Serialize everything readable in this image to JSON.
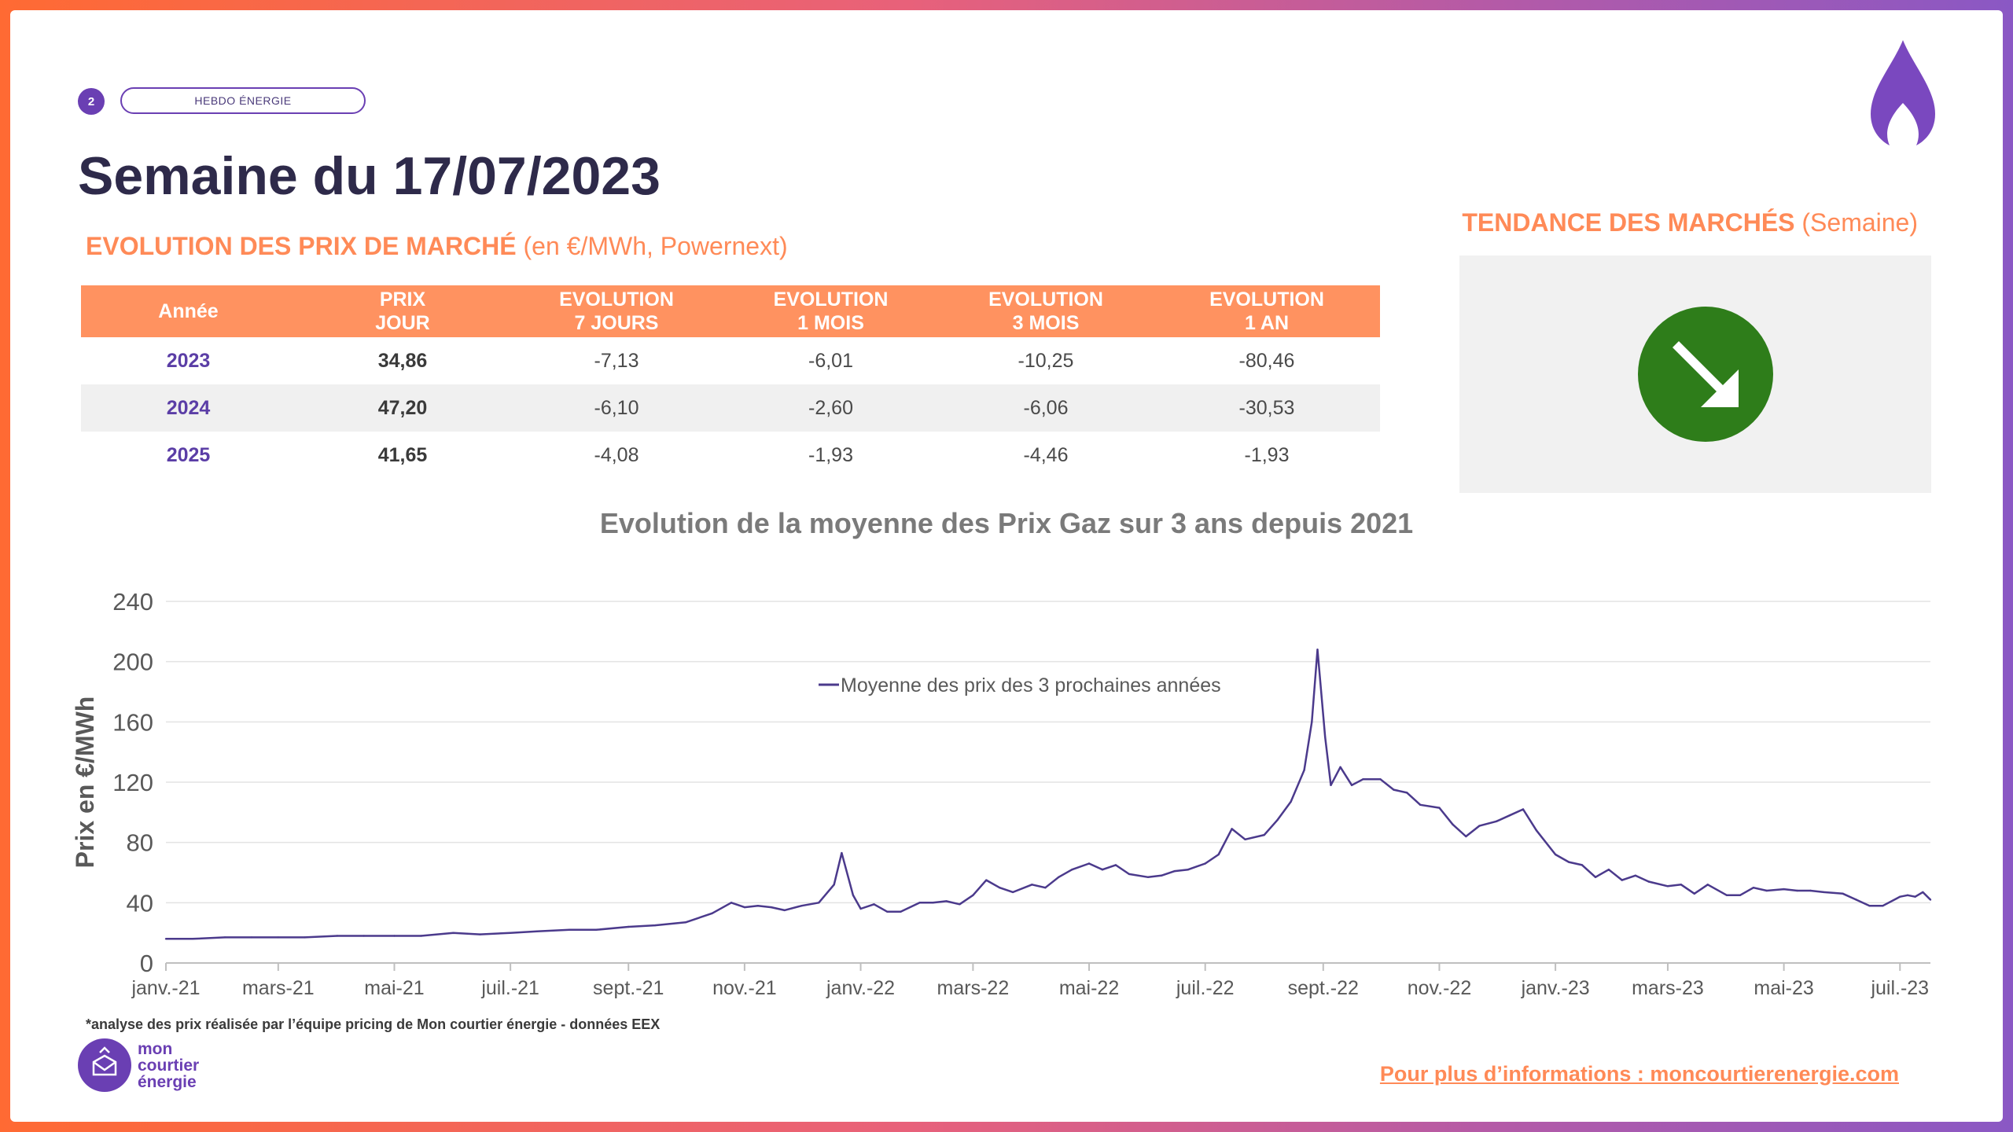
{
  "header": {
    "page_number": "2",
    "badge": "HEBDO ÉNERGIE",
    "title": "Semaine du 17/07/2023"
  },
  "section": {
    "title_bold": "EVOLUTION DES PRIX DE MARCHÉ",
    "title_light": "(en €/MWh, Powernext)"
  },
  "trend": {
    "title_bold": "TENDANCE DES MARCHÉS",
    "title_light": "(Semaine)",
    "direction_icon": "arrow-down-right-icon",
    "color": "#2e7d1a"
  },
  "table": {
    "headers": [
      [
        "Année"
      ],
      [
        "PRIX",
        "JOUR"
      ],
      [
        "EVOLUTION",
        "7 JOURS"
      ],
      [
        "EVOLUTION",
        "1 MOIS"
      ],
      [
        "EVOLUTION",
        "3 MOIS"
      ],
      [
        "EVOLUTION",
        "1 AN"
      ]
    ],
    "rows": [
      [
        "2023",
        "34,86",
        "-7,13",
        "-6,01",
        "-10,25",
        "-80,46"
      ],
      [
        "2024",
        "47,20",
        "-6,10",
        "-2,60",
        "-6,06",
        "-30,53"
      ],
      [
        "2025",
        "41,65",
        "-4,08",
        "-1,93",
        "-4,46",
        "-1,93"
      ]
    ]
  },
  "chart_data": {
    "type": "line",
    "title": "Evolution de la moyenne des Prix Gaz sur 3 ans depuis 2021",
    "xlabel": "",
    "ylabel": "Prix en €/MWh",
    "ylim": [
      0,
      240
    ],
    "yticks": [
      "0",
      "40",
      "80",
      "120",
      "160",
      "200",
      "240"
    ],
    "xlim": [
      "2021-01-01",
      "2023-07-17"
    ],
    "xticks": [
      {
        "date": "2021-01-01",
        "label": "janv.-21"
      },
      {
        "date": "2021-03-01",
        "label": "mars-21"
      },
      {
        "date": "2021-05-01",
        "label": "mai-21"
      },
      {
        "date": "2021-07-01",
        "label": "juil.-21"
      },
      {
        "date": "2021-09-01",
        "label": "sept.-21"
      },
      {
        "date": "2021-11-01",
        "label": "nov.-21"
      },
      {
        "date": "2022-01-01",
        "label": "janv.-22"
      },
      {
        "date": "2022-03-01",
        "label": "mars-22"
      },
      {
        "date": "2022-05-01",
        "label": "mai-22"
      },
      {
        "date": "2022-07-01",
        "label": "juil.-22"
      },
      {
        "date": "2022-09-01",
        "label": "sept.-22"
      },
      {
        "date": "2022-11-01",
        "label": "nov.-22"
      },
      {
        "date": "2023-01-01",
        "label": "janv.-23"
      },
      {
        "date": "2023-03-01",
        "label": "mars-23"
      },
      {
        "date": "2023-05-01",
        "label": "mai-23"
      },
      {
        "date": "2023-07-01",
        "label": "juil.-23"
      }
    ],
    "grid": true,
    "legend_position": "top-center",
    "series": [
      {
        "name": "Moyenne des prix des 3 prochaines années",
        "color": "#4b3a8c",
        "points": [
          [
            "2021-01-01",
            16
          ],
          [
            "2021-01-15",
            16
          ],
          [
            "2021-02-01",
            17
          ],
          [
            "2021-02-15",
            17
          ],
          [
            "2021-03-01",
            17
          ],
          [
            "2021-03-15",
            17
          ],
          [
            "2021-04-01",
            18
          ],
          [
            "2021-04-15",
            18
          ],
          [
            "2021-05-01",
            18
          ],
          [
            "2021-05-15",
            18
          ],
          [
            "2021-06-01",
            20
          ],
          [
            "2021-06-15",
            19
          ],
          [
            "2021-07-01",
            20
          ],
          [
            "2021-07-15",
            21
          ],
          [
            "2021-08-01",
            22
          ],
          [
            "2021-08-15",
            22
          ],
          [
            "2021-09-01",
            24
          ],
          [
            "2021-09-15",
            25
          ],
          [
            "2021-10-01",
            27
          ],
          [
            "2021-10-15",
            33
          ],
          [
            "2021-10-25",
            40
          ],
          [
            "2021-11-01",
            37
          ],
          [
            "2021-11-08",
            38
          ],
          [
            "2021-11-15",
            37
          ],
          [
            "2021-11-22",
            35
          ],
          [
            "2021-12-01",
            38
          ],
          [
            "2021-12-10",
            40
          ],
          [
            "2021-12-18",
            52
          ],
          [
            "2021-12-22",
            73
          ],
          [
            "2021-12-28",
            45
          ],
          [
            "2022-01-01",
            36
          ],
          [
            "2022-01-08",
            39
          ],
          [
            "2022-01-15",
            34
          ],
          [
            "2022-01-22",
            34
          ],
          [
            "2022-02-01",
            40
          ],
          [
            "2022-02-08",
            40
          ],
          [
            "2022-02-15",
            41
          ],
          [
            "2022-02-22",
            39
          ],
          [
            "2022-03-01",
            45
          ],
          [
            "2022-03-08",
            55
          ],
          [
            "2022-03-15",
            50
          ],
          [
            "2022-03-22",
            47
          ],
          [
            "2022-04-01",
            52
          ],
          [
            "2022-04-08",
            50
          ],
          [
            "2022-04-15",
            57
          ],
          [
            "2022-04-22",
            62
          ],
          [
            "2022-05-01",
            66
          ],
          [
            "2022-05-08",
            62
          ],
          [
            "2022-05-15",
            65
          ],
          [
            "2022-05-22",
            59
          ],
          [
            "2022-06-01",
            57
          ],
          [
            "2022-06-08",
            58
          ],
          [
            "2022-06-15",
            61
          ],
          [
            "2022-06-22",
            62
          ],
          [
            "2022-07-01",
            66
          ],
          [
            "2022-07-08",
            72
          ],
          [
            "2022-07-15",
            89
          ],
          [
            "2022-07-22",
            82
          ],
          [
            "2022-08-01",
            85
          ],
          [
            "2022-08-08",
            95
          ],
          [
            "2022-08-15",
            107
          ],
          [
            "2022-08-22",
            128
          ],
          [
            "2022-08-26",
            160
          ],
          [
            "2022-08-29",
            208
          ],
          [
            "2022-09-02",
            150
          ],
          [
            "2022-09-05",
            118
          ],
          [
            "2022-09-10",
            130
          ],
          [
            "2022-09-16",
            118
          ],
          [
            "2022-09-22",
            122
          ],
          [
            "2022-10-01",
            122
          ],
          [
            "2022-10-08",
            115
          ],
          [
            "2022-10-15",
            113
          ],
          [
            "2022-10-22",
            105
          ],
          [
            "2022-11-01",
            103
          ],
          [
            "2022-11-08",
            92
          ],
          [
            "2022-11-15",
            84
          ],
          [
            "2022-11-22",
            91
          ],
          [
            "2022-12-01",
            94
          ],
          [
            "2022-12-08",
            98
          ],
          [
            "2022-12-15",
            102
          ],
          [
            "2022-12-22",
            88
          ],
          [
            "2023-01-01",
            72
          ],
          [
            "2023-01-08",
            67
          ],
          [
            "2023-01-15",
            65
          ],
          [
            "2023-01-22",
            57
          ],
          [
            "2023-01-29",
            62
          ],
          [
            "2023-02-05",
            55
          ],
          [
            "2023-02-12",
            58
          ],
          [
            "2023-02-19",
            54
          ],
          [
            "2023-03-01",
            51
          ],
          [
            "2023-03-08",
            52
          ],
          [
            "2023-03-15",
            46
          ],
          [
            "2023-03-22",
            52
          ],
          [
            "2023-04-01",
            45
          ],
          [
            "2023-04-08",
            45
          ],
          [
            "2023-04-15",
            50
          ],
          [
            "2023-04-22",
            48
          ],
          [
            "2023-05-01",
            49
          ],
          [
            "2023-05-08",
            48
          ],
          [
            "2023-05-15",
            48
          ],
          [
            "2023-05-22",
            47
          ],
          [
            "2023-06-01",
            46
          ],
          [
            "2023-06-08",
            42
          ],
          [
            "2023-06-15",
            38
          ],
          [
            "2023-06-22",
            38
          ],
          [
            "2023-07-01",
            44
          ],
          [
            "2023-07-05",
            45
          ],
          [
            "2023-07-09",
            44
          ],
          [
            "2023-07-13",
            47
          ],
          [
            "2023-07-17",
            42
          ]
        ]
      }
    ]
  },
  "footer": {
    "footnote": "*analyse des prix réalisée par l’équipe pricing de Mon courtier énergie -  données EEX",
    "logo_lines": [
      "mon",
      "courtier",
      "énergie"
    ],
    "more_info": "Pour plus d’informations : moncourtierenergie.com"
  },
  "colors": {
    "accent": "#ff8a57",
    "table_header": "#ff9260",
    "brand": "#6a3fb3",
    "line": "#4b3a8c"
  }
}
